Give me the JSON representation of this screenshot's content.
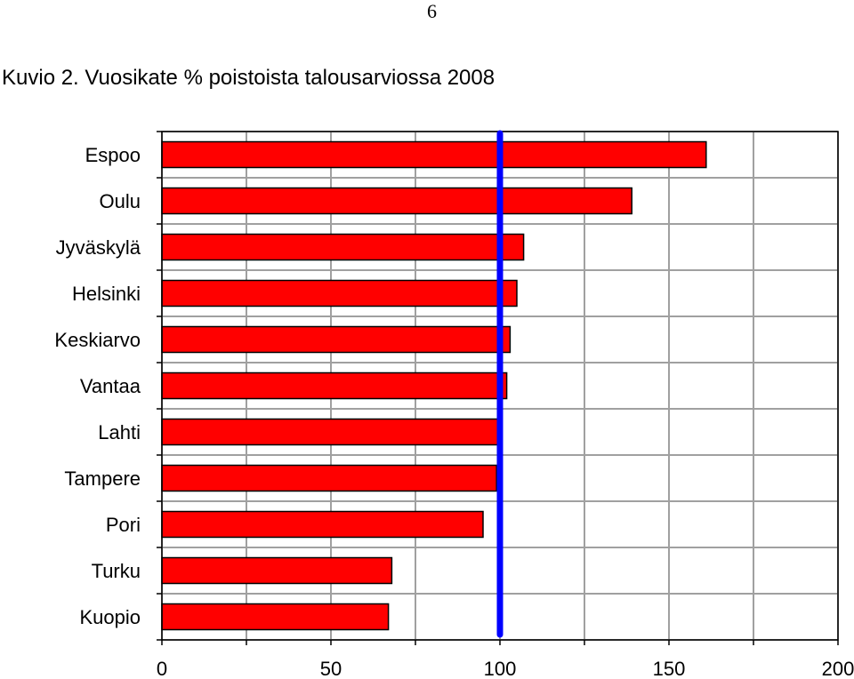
{
  "page": {
    "number": "6",
    "figure_title": "Kuvio 2. Vuosikate % poistoista talousarviossa 2008"
  },
  "chart_data": {
    "type": "bar",
    "orientation": "horizontal",
    "categories": [
      "Espoo",
      "Oulu",
      "Jyväskylä",
      "Helsinki",
      "Keskiarvo",
      "Vantaa",
      "Lahti",
      "Tampere",
      "Pori",
      "Turku",
      "Kuopio"
    ],
    "values": [
      161,
      139,
      107,
      105,
      103,
      102,
      100,
      99,
      95,
      68,
      67
    ],
    "xlim": [
      0,
      200
    ],
    "x_ticks": [
      "0",
      "50",
      "100",
      "150",
      "200"
    ],
    "x_gridlines": [
      0,
      25,
      50,
      75,
      100,
      125,
      150,
      175,
      200
    ],
    "reference_line": 100,
    "grid": true,
    "legend": "none",
    "colors": {
      "bar_fill": "#ff0000",
      "bar_stroke": "#000000",
      "reference_line": "#0000ff",
      "grid": "#a0a0a0",
      "frame": "#000000"
    }
  }
}
